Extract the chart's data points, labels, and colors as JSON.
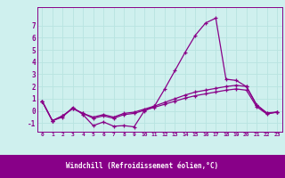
{
  "xlabel": "Windchill (Refroidissement éolien,°C)",
  "background_color": "#cff0ee",
  "grid_color": "#b8e4e0",
  "line_color": "#880088",
  "hours": [
    0,
    1,
    2,
    3,
    4,
    5,
    6,
    7,
    8,
    9,
    10,
    11,
    12,
    13,
    14,
    15,
    16,
    17,
    18,
    19,
    20,
    21,
    22,
    23
  ],
  "main_line": [
    0.8,
    -0.8,
    -0.5,
    0.3,
    -0.3,
    -1.2,
    -0.9,
    -1.25,
    -1.2,
    -1.3,
    0.0,
    0.4,
    1.8,
    3.3,
    4.8,
    6.2,
    7.2,
    7.6,
    2.6,
    2.5,
    2.0,
    0.5,
    -0.2,
    -0.1
  ],
  "line2": [
    0.8,
    -0.8,
    -0.4,
    0.2,
    -0.2,
    -0.5,
    -0.3,
    -0.5,
    -0.2,
    -0.1,
    0.15,
    0.4,
    0.7,
    1.0,
    1.3,
    1.55,
    1.7,
    1.85,
    2.0,
    2.1,
    2.0,
    0.5,
    -0.15,
    -0.1
  ],
  "line3": [
    0.8,
    -0.8,
    -0.4,
    0.2,
    -0.2,
    -0.6,
    -0.4,
    -0.6,
    -0.3,
    -0.2,
    0.05,
    0.3,
    0.55,
    0.8,
    1.05,
    1.25,
    1.4,
    1.55,
    1.7,
    1.8,
    1.7,
    0.35,
    -0.25,
    -0.1
  ],
  "ylim": [
    -1.7,
    8.5
  ],
  "yticks": [
    -1,
    0,
    1,
    2,
    3,
    4,
    5,
    6,
    7
  ],
  "xlim": [
    -0.5,
    23.5
  ],
  "xlabel_color": "#880088",
  "tick_color": "#880088",
  "spine_color": "#880088"
}
